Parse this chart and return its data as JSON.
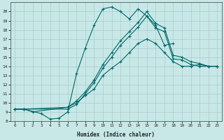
{
  "xlabel": "Humidex (Indice chaleur)",
  "background_color": "#c8e8e8",
  "grid_color": "#aacccc",
  "line_color": "#006868",
  "xlim": [
    -0.5,
    23.5
  ],
  "ylim": [
    8,
    21
  ],
  "xticks": [
    0,
    1,
    2,
    3,
    4,
    5,
    6,
    7,
    8,
    9,
    10,
    11,
    12,
    13,
    14,
    15,
    16,
    17,
    18,
    19,
    20,
    21,
    22,
    23
  ],
  "yticks": [
    8,
    9,
    10,
    11,
    12,
    13,
    14,
    15,
    16,
    17,
    18,
    19,
    20
  ],
  "lines": [
    {
      "x": [
        0,
        1,
        2,
        6,
        7,
        8,
        9,
        10,
        11,
        12,
        13,
        14,
        15,
        16,
        17,
        18,
        19,
        20,
        21,
        22,
        23
      ],
      "y": [
        9.3,
        9.3,
        9.0,
        9.5,
        10.0,
        10.8,
        11.5,
        13.0,
        13.8,
        14.5,
        15.5,
        16.5,
        17.0,
        16.5,
        15.5,
        14.5,
        14.0,
        14.0,
        14.2,
        14.0,
        14.0
      ]
    },
    {
      "x": [
        0,
        1,
        3,
        4,
        5,
        6,
        7,
        8,
        9,
        10,
        11,
        12,
        13,
        14,
        15,
        16,
        17,
        18
      ],
      "y": [
        9.3,
        9.3,
        8.8,
        8.2,
        8.3,
        9.0,
        13.2,
        16.0,
        18.5,
        20.3,
        20.5,
        20.0,
        19.2,
        20.3,
        19.5,
        18.5,
        16.3,
        16.5
      ]
    },
    {
      "x": [
        0,
        1,
        6,
        7,
        8,
        9,
        10,
        11,
        12,
        13,
        14,
        15,
        16,
        17,
        18,
        19,
        20,
        21,
        22,
        23
      ],
      "y": [
        9.3,
        9.3,
        9.5,
        10.2,
        11.2,
        12.5,
        14.2,
        15.5,
        16.8,
        17.8,
        18.8,
        20.0,
        18.7,
        18.2,
        15.2,
        15.0,
        14.5,
        14.3,
        14.0,
        14.0
      ]
    },
    {
      "x": [
        0,
        1,
        6,
        7,
        8,
        9,
        10,
        11,
        12,
        13,
        14,
        15,
        16,
        17,
        18,
        19,
        20,
        21,
        22,
        23
      ],
      "y": [
        9.3,
        9.3,
        9.3,
        9.8,
        11.0,
        12.2,
        13.8,
        15.0,
        16.3,
        17.3,
        18.3,
        19.5,
        18.2,
        17.8,
        14.8,
        14.7,
        14.2,
        14.0,
        14.0,
        14.0
      ]
    }
  ]
}
